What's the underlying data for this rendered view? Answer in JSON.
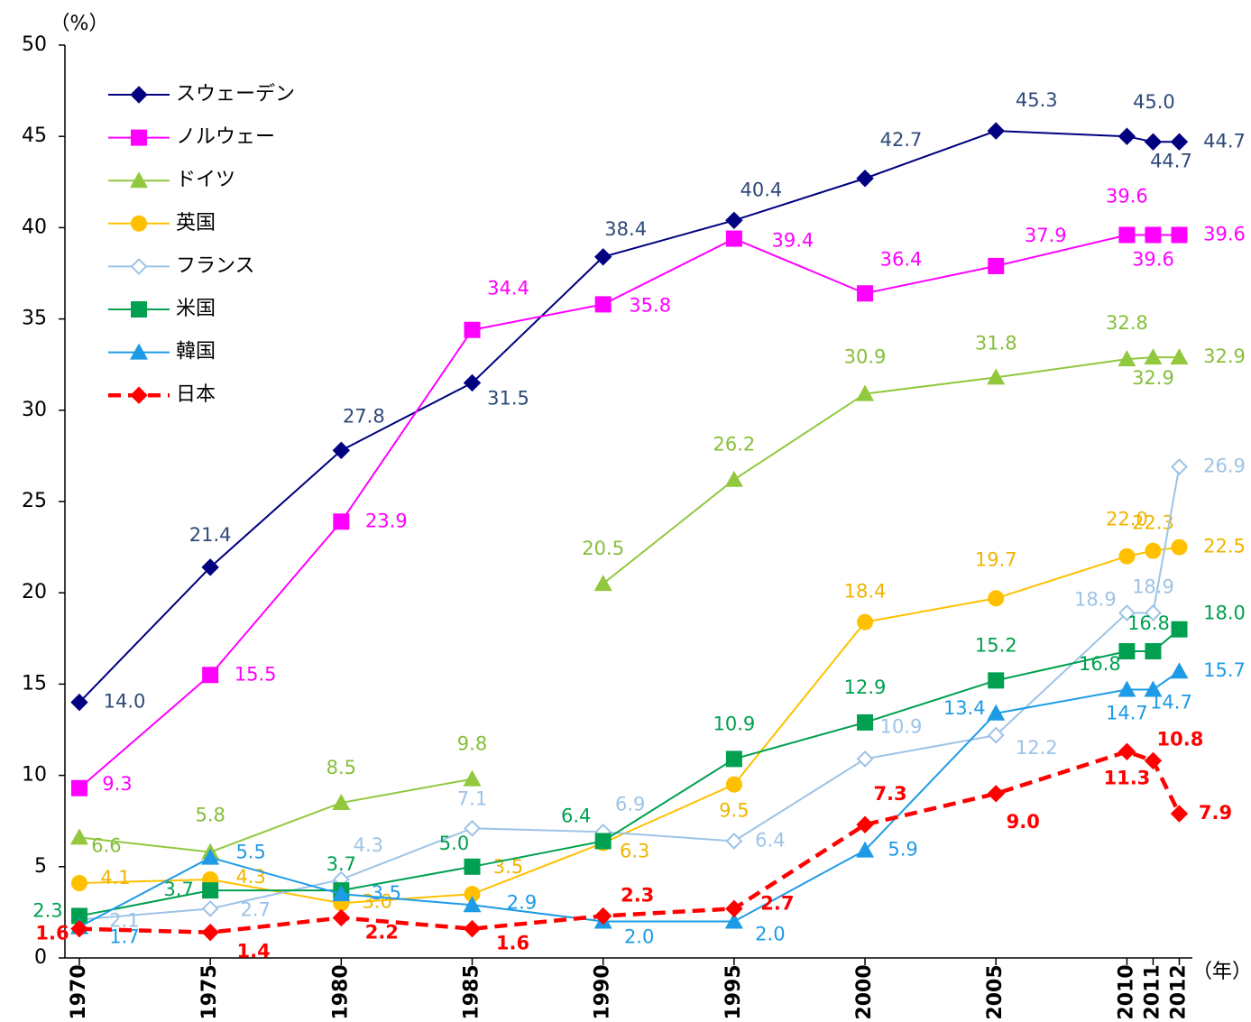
{
  "chart_data": {
    "type": "line",
    "y_label": "（%）",
    "x_label": "（年）",
    "x": [
      1970,
      1975,
      1980,
      1985,
      1990,
      1995,
      2000,
      2005,
      2010,
      2011,
      2012
    ],
    "xlim": [
      1969.45,
      2012.5
    ],
    "xticks": [
      1970,
      1975,
      1980,
      1985,
      1990,
      1995,
      2000,
      2005,
      2010,
      2011,
      2012
    ],
    "ylim": [
      0,
      50
    ],
    "yticks": [
      0,
      5,
      10,
      15,
      20,
      25,
      30,
      35,
      40,
      45,
      50
    ],
    "grid": false,
    "legend": "upper left",
    "series": [
      {
        "name": "スウェーデン",
        "color": "#000080",
        "label_color": "#2e4a78",
        "marker": "diamond",
        "values": [
          14.0,
          21.4,
          27.8,
          31.5,
          38.4,
          40.4,
          42.7,
          45.3,
          45.0,
          44.7,
          44.7
        ],
        "value_labels": [
          "14.0",
          "21.4",
          "27.8",
          "31.5",
          "38.4",
          "40.4",
          "42.7",
          "45.3",
          "45.0",
          "44.7",
          "44.7"
        ]
      },
      {
        "name": "ノルウェー",
        "color": "#ff00ff",
        "label_color": "#ff00ff",
        "marker": "square",
        "values": [
          9.3,
          15.5,
          23.9,
          34.4,
          35.8,
          39.4,
          36.4,
          37.9,
          39.6,
          39.6,
          39.6
        ],
        "value_labels": [
          "9.3",
          "15.5",
          "23.9",
          "34.4",
          "35.8",
          "39.4",
          "36.4",
          "37.9",
          "39.6",
          "39.6",
          "39.6"
        ]
      },
      {
        "name": "ドイツ",
        "color": "#92c83e",
        "label_color": "#86bf3a",
        "marker": "triangle",
        "x": [
          1970,
          1975,
          1980,
          1985,
          null,
          1990,
          1995,
          2000,
          2005,
          2010,
          2011,
          2012
        ],
        "values": [
          6.6,
          5.8,
          8.5,
          9.8,
          null,
          20.5,
          26.2,
          30.9,
          31.8,
          32.8,
          32.9,
          32.9
        ],
        "value_labels": [
          "6.6",
          "5.8",
          "8.5",
          "9.8",
          null,
          "20.5",
          "26.2",
          "30.9",
          "31.8",
          "32.8",
          "32.9",
          "32.9"
        ]
      },
      {
        "name": "英国",
        "color": "#ffc000",
        "label_color": "#f0b400",
        "marker": "circle",
        "values": [
          4.1,
          4.3,
          3.0,
          3.5,
          6.3,
          9.5,
          18.4,
          19.7,
          22.0,
          22.3,
          22.5
        ],
        "value_labels": [
          "4.1",
          "4.3",
          "3.0",
          "3.5",
          "6.3",
          "9.5",
          "18.4",
          "19.7",
          "22.0",
          "22.3",
          "22.5"
        ]
      },
      {
        "name": "フランス",
        "color": "#9dc3e6",
        "label_color": "#9dc3e6",
        "marker": "open-diamond",
        "values": [
          2.1,
          2.7,
          4.3,
          7.1,
          6.9,
          6.4,
          10.9,
          12.2,
          18.9,
          18.9,
          26.9
        ],
        "value_labels": [
          "2.1",
          "2.7",
          "4.3",
          "7.1",
          "6.9",
          "6.4",
          "10.9",
          "12.2",
          "18.9",
          "18.9",
          "26.9"
        ]
      },
      {
        "name": "米国",
        "color": "#00a050",
        "label_color": "#00a050",
        "marker": "square",
        "values": [
          2.3,
          3.7,
          3.7,
          5.0,
          6.4,
          10.9,
          12.9,
          15.2,
          16.8,
          16.8,
          18.0
        ],
        "value_labels": [
          "2.3",
          "3.7",
          "3.7",
          "5.0",
          "6.4",
          "10.9",
          "12.9",
          "15.2",
          "16.8",
          "16.8",
          "18.0"
        ]
      },
      {
        "name": "韓国",
        "color": "#1e9be6",
        "label_color": "#1e9be6",
        "marker": "triangle",
        "values": [
          1.7,
          5.5,
          3.5,
          2.9,
          2.0,
          2.0,
          5.9,
          13.4,
          14.7,
          14.7,
          15.7
        ],
        "value_labels": [
          "1.7",
          "5.5",
          "3.5",
          "2.9",
          "2.0",
          "2.0",
          "5.9",
          "13.4",
          "14.7",
          "14.7",
          "15.7"
        ]
      },
      {
        "name": "日本",
        "color": "#ff0000",
        "label_color": "#ff0000",
        "marker": "diamond",
        "dashed": true,
        "bold_labels": true,
        "values": [
          1.6,
          1.4,
          2.2,
          1.6,
          2.3,
          2.7,
          7.3,
          9.0,
          11.3,
          10.8,
          7.9
        ],
        "value_labels": [
          "1.6",
          "1.4",
          "2.2",
          "1.6",
          "2.3",
          "2.7",
          "7.3",
          "9.0",
          "11.3",
          "10.8",
          "7.9"
        ]
      }
    ]
  }
}
